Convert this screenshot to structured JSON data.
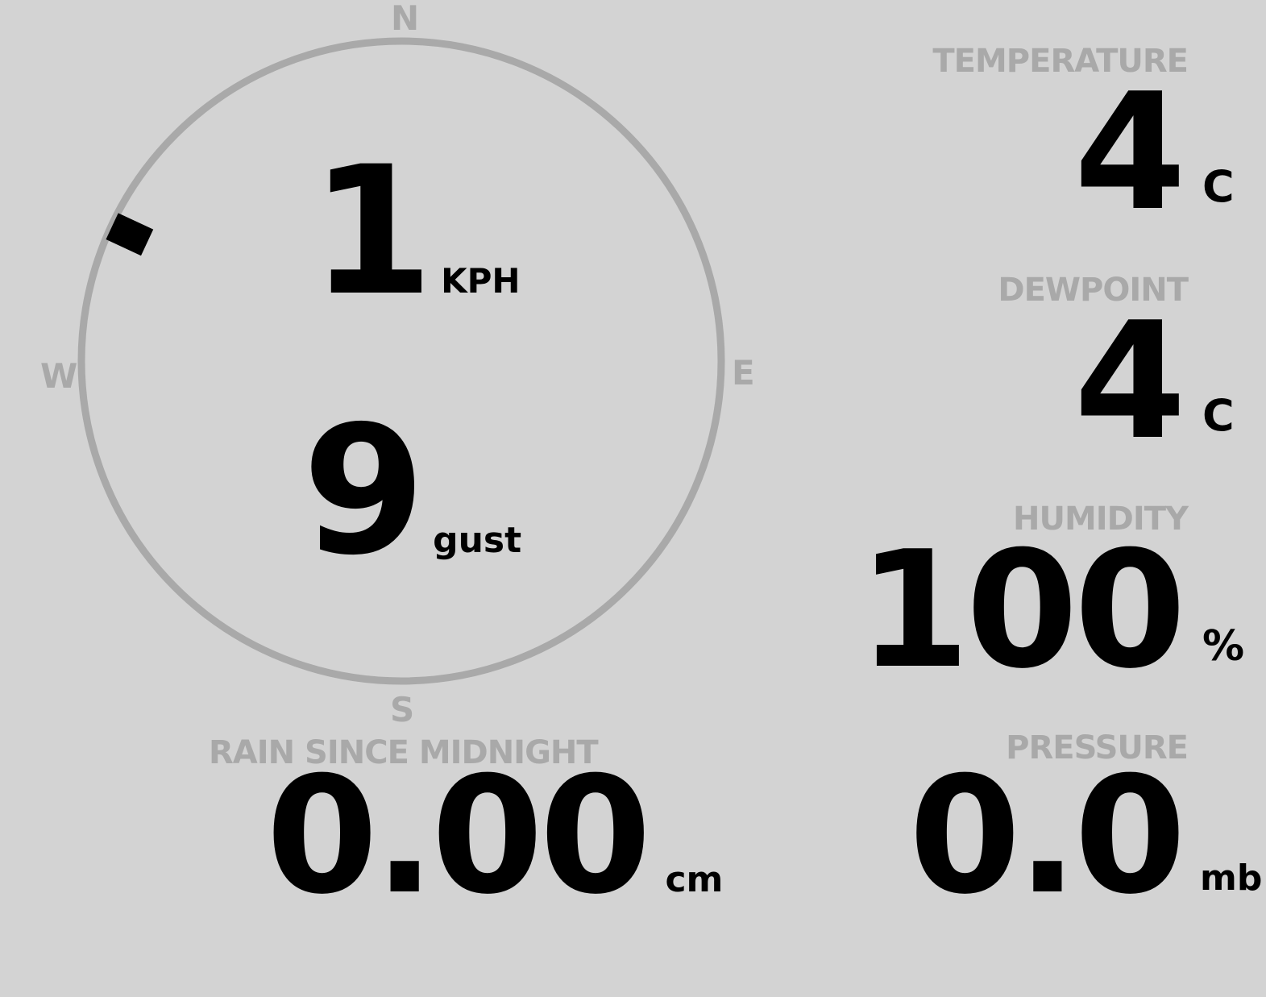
{
  "colors": {
    "background": "#d3d3d3",
    "label": "#a9a9a9",
    "value": "#000000",
    "compass_ring": "#a9a9a9",
    "direction_marker": "#000000"
  },
  "wind": {
    "cardinals": {
      "n": "N",
      "e": "E",
      "s": "S",
      "w": "W"
    },
    "speed": "1",
    "speed_unit": "KPH",
    "gust": "9",
    "gust_unit": "gust",
    "direction_deg": 295
  },
  "rain": {
    "label": "RAIN SINCE MIDNIGHT",
    "value": "0.00",
    "unit": "cm"
  },
  "temperature": {
    "label": "TEMPERATURE",
    "value": "4",
    "unit": "C"
  },
  "dewpoint": {
    "label": "DEWPOINT",
    "value": "4",
    "unit": "C"
  },
  "humidity": {
    "label": "HUMIDITY",
    "value": "100",
    "unit": "%"
  },
  "pressure": {
    "label": "PRESSURE",
    "value": "0.0",
    "unit": "mb"
  }
}
